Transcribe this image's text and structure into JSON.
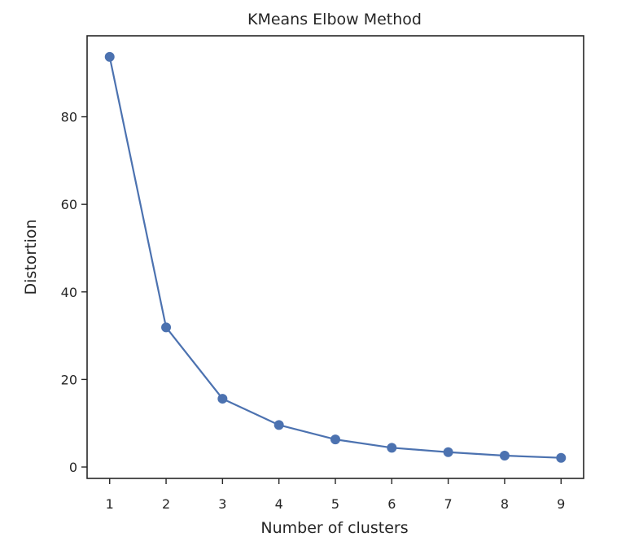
{
  "chart_data": {
    "type": "line",
    "title": "KMeans Elbow Method",
    "xlabel": "Number of clusters",
    "ylabel": "Distortion",
    "x": [
      1,
      2,
      3,
      4,
      5,
      6,
      7,
      8,
      9
    ],
    "series": [
      {
        "values": [
          93.7,
          31.9,
          15.6,
          9.6,
          6.3,
          4.4,
          3.4,
          2.6,
          2.1
        ]
      }
    ],
    "xticks": [
      1,
      2,
      3,
      4,
      5,
      6,
      7,
      8,
      9
    ],
    "yticks": [
      0,
      20,
      40,
      60,
      80
    ],
    "xlim": [
      0.6,
      9.4
    ],
    "ylim": [
      -2.6,
      98.5
    ],
    "grid": false,
    "line_color": "#4c72b0",
    "marker": "circle"
  }
}
